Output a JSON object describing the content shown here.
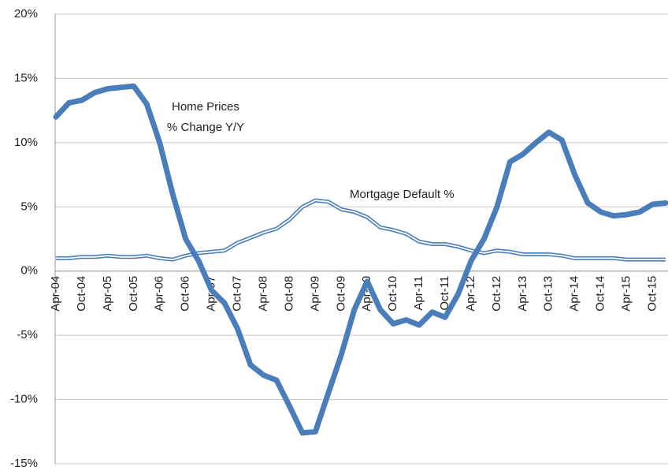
{
  "chart_data": {
    "type": "line",
    "categories": [
      "Apr-04",
      null,
      "Oct-04",
      null,
      "Apr-05",
      null,
      "Oct-05",
      null,
      "Apr-06",
      null,
      "Oct-06",
      null,
      "Apr-07",
      null,
      "Oct-07",
      null,
      "Apr-08",
      null,
      "Oct-08",
      null,
      "Apr-09",
      null,
      "Oct-09",
      null,
      "Apr-10",
      null,
      "Oct-10",
      null,
      "Apr-11",
      null,
      "Oct-11",
      null,
      "Apr-12",
      null,
      "Oct-12",
      null,
      "Apr-13",
      null,
      "Oct-13",
      null,
      "Apr-14",
      null,
      "Oct-14",
      null,
      "Apr-15",
      null,
      "Oct-15",
      null
    ],
    "series": [
      {
        "color": "#4a7ebb",
        "values": [
          12.0,
          13.1,
          13.3,
          13.9,
          14.2,
          14.3,
          14.4,
          13.0,
          10.0,
          6.0,
          2.5,
          0.8,
          -1.5,
          -2.5,
          -4.5,
          -7.3,
          -8.1,
          -8.5,
          -10.5,
          -12.6,
          -12.5,
          -9.5,
          -6.5,
          -3.0,
          -0.8,
          -3.0,
          -4.1,
          -3.8,
          -4.2,
          -3.2,
          -3.6,
          -1.8,
          0.8,
          2.5,
          5.0,
          8.5,
          9.1,
          10.0,
          10.8,
          10.2,
          7.5,
          5.3,
          4.6,
          4.3,
          4.4,
          4.6,
          5.2,
          5.3
        ]
      },
      {
        "name": "Mortgage Default %",
        "color": "#4a7ebb",
        "values": [
          1.0,
          1.0,
          1.1,
          1.1,
          1.2,
          1.1,
          1.1,
          1.2,
          1.0,
          0.9,
          1.2,
          1.4,
          1.5,
          1.6,
          2.2,
          2.6,
          3.0,
          3.3,
          4.0,
          5.0,
          5.5,
          5.4,
          4.8,
          4.6,
          4.2,
          3.4,
          3.2,
          2.9,
          2.3,
          2.1,
          2.1,
          1.9,
          1.6,
          1.4,
          1.6,
          1.5,
          1.3,
          1.3,
          1.3,
          1.2,
          1.0,
          1.0,
          1.0,
          1.0,
          0.9,
          0.9,
          0.9,
          0.9
        ]
      }
    ],
    "annotations": [
      {
        "lines": [
          "Home Prices",
          "% Change Y/Y"
        ]
      }
    ],
    "ylim": [
      -15,
      20
    ],
    "yticks": [
      {
        "value": -15,
        "label": "-15%"
      },
      {
        "value": -10,
        "label": "-10%"
      },
      {
        "value": -5,
        "label": "-5%"
      },
      {
        "value": 0,
        "label": "0%"
      },
      {
        "value": 5,
        "label": "5%"
      },
      {
        "value": 10,
        "label": "10%"
      },
      {
        "value": 15,
        "label": "15%"
      },
      {
        "value": 20,
        "label": "20%"
      }
    ],
    "grid": true
  }
}
